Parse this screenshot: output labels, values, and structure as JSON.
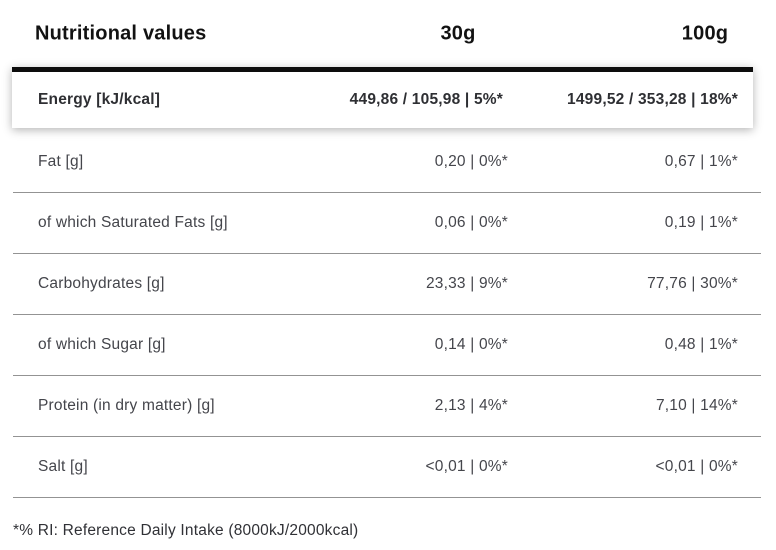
{
  "table": {
    "title": "Nutritional values",
    "col_30": "30g",
    "col_100": "100g",
    "energy": {
      "label": "Energy [kJ/kcal]",
      "per_30g": "449,86 / 105,98 | 5%*",
      "per_100g": "1499,52 / 353,28 | 18%*"
    },
    "rows": [
      {
        "label": "Fat [g]",
        "per_30g": "0,20 | 0%*",
        "per_100g": "0,67 | 1%*"
      },
      {
        "label": "of which Saturated Fats [g]",
        "per_30g": "0,06 | 0%*",
        "per_100g": "0,19 | 1%*"
      },
      {
        "label": "Carbohydrates [g]",
        "per_30g": "23,33 | 9%*",
        "per_100g": "77,76 | 30%*"
      },
      {
        "label": "of which Sugar [g]",
        "per_30g": "0,14 | 0%*",
        "per_100g": "0,48 | 1%*"
      },
      {
        "label": "Protein (in dry matter) [g]",
        "per_30g": "2,13 | 4%*",
        "per_100g": "7,10 | 14%*"
      },
      {
        "label": "Salt [g]",
        "per_30g": "<0,01 | 0%*",
        "per_100g": "<0,01 | 0%*"
      }
    ],
    "footnote": "*% RI: Reference Daily Intake (8000kJ/2000kcal)",
    "colors": {
      "heading_text": "#121212",
      "body_text": "#44454b",
      "top_rule": "#0d0d0d",
      "separator": "#939393"
    }
  }
}
